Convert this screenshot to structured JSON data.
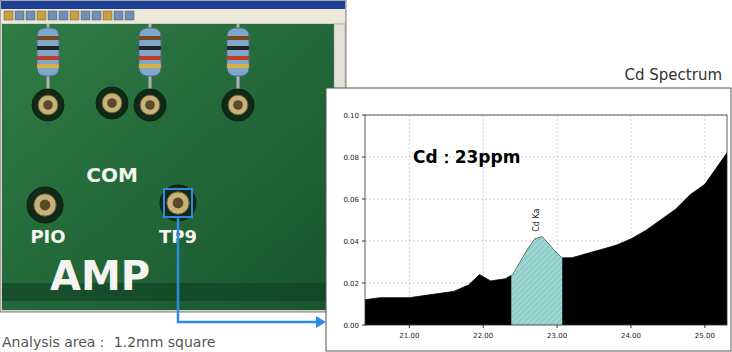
{
  "screenshot": {
    "labels": [
      "COM",
      "PIO",
      "TP9",
      "AMP"
    ]
  },
  "caption": "Analysis area： 1.2mm square",
  "chart_data": {
    "type": "area",
    "title": "Cd Spectrum",
    "annotation": "Cd：23ppm",
    "x": [
      20.4,
      20.6,
      20.8,
      21.0,
      21.2,
      21.4,
      21.6,
      21.8,
      21.95,
      22.1,
      22.3,
      22.4,
      22.5,
      22.6,
      22.7,
      22.8,
      22.9,
      23.0,
      23.07,
      23.2,
      23.4,
      23.6,
      23.8,
      24.0,
      24.2,
      24.4,
      24.6,
      24.8,
      25.0,
      25.2,
      25.3
    ],
    "values": [
      0.012,
      0.013,
      0.013,
      0.013,
      0.014,
      0.015,
      0.016,
      0.019,
      0.024,
      0.021,
      0.022,
      0.024,
      0.03,
      0.036,
      0.041,
      0.042,
      0.038,
      0.034,
      0.032,
      0.032,
      0.034,
      0.036,
      0.038,
      0.041,
      0.045,
      0.05,
      0.055,
      0.062,
      0.067,
      0.077,
      0.082
    ],
    "color": "#000000",
    "xlim": [
      20.4,
      25.3
    ],
    "xticks": [
      {
        "value": 21,
        "label": "21.00"
      },
      {
        "value": 22,
        "label": "22.00"
      },
      {
        "value": 23,
        "label": "23.00"
      },
      {
        "value": 24,
        "label": "24.00"
      },
      {
        "value": 25,
        "label": "25.00"
      }
    ],
    "ylim": [
      0,
      0.1
    ],
    "yticks": [
      {
        "value": 0,
        "label": "0.00"
      },
      {
        "value": 0.02,
        "label": "0.02"
      },
      {
        "value": 0.04,
        "label": "0.04"
      },
      {
        "value": 0.06,
        "label": "0.06"
      },
      {
        "value": 0.08,
        "label": "0.08"
      },
      {
        "value": 0.1,
        "label": "0.10"
      }
    ],
    "grid": true,
    "highlight": {
      "label": "Cd Ka",
      "range": [
        22.38,
        23.07
      ],
      "color": "#8fcfcb"
    }
  }
}
